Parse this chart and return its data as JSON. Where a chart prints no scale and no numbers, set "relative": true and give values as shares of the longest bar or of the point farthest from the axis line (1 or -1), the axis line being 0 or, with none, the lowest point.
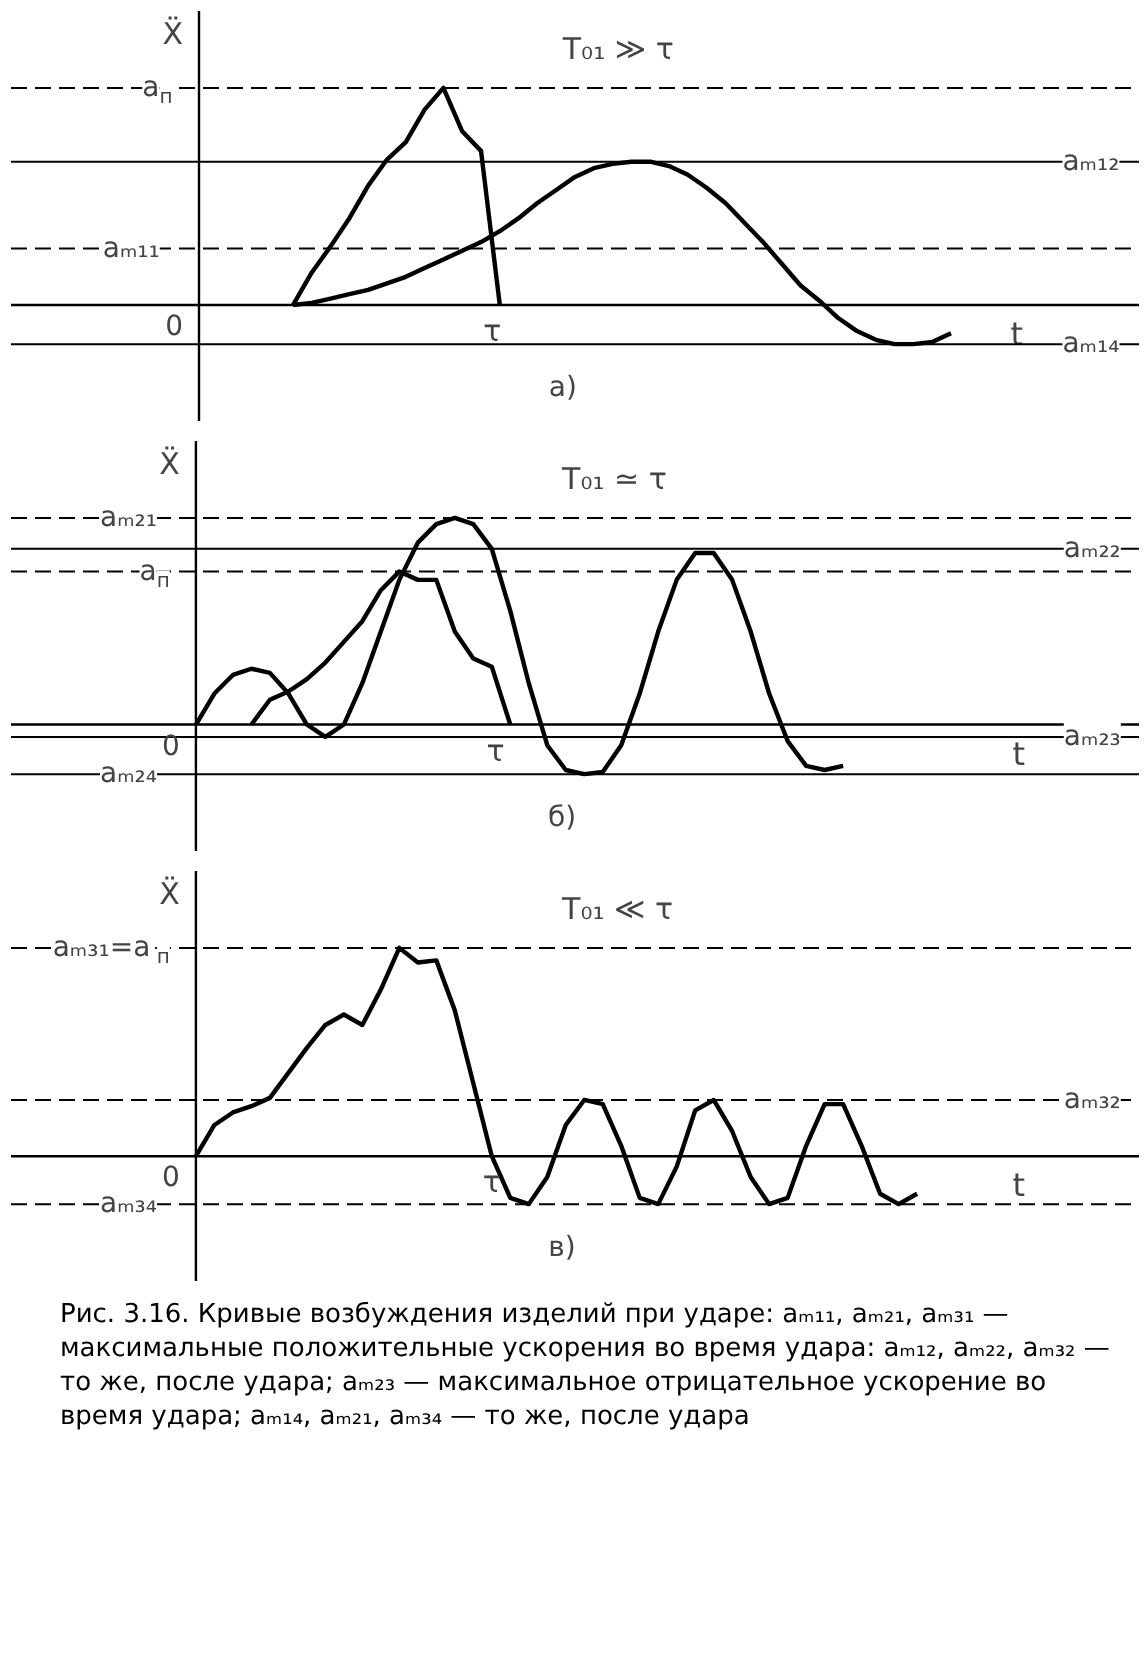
{
  "chart_data": [
    {
      "type": "line",
      "relative": true,
      "title": "T₀₁ ≫ τ",
      "subtitle": "а)",
      "xlabel": "t",
      "ylabel": "Ẍ",
      "categories": [
        null,
        null,
        null,
        null,
        null,
        null,
        null,
        null,
        null,
        null,
        null,
        null,
        null,
        null,
        null,
        null,
        null,
        null,
        null,
        null,
        null,
        null,
        null,
        null,
        null,
        null,
        null,
        null,
        null,
        null,
        null,
        null,
        null,
        null,
        null,
        null,
        null,
        null,
        null,
        null,
        null,
        null,
        null
      ],
      "series": [
        {
          "color": "#000000",
          "values": [
            null,
            null,
            null,
            null,
            null,
            0,
            0.15,
            0.27,
            0.4,
            0.55,
            0.67,
            0.75,
            0.9,
            1.0,
            0.8,
            0.71,
            0,
            null,
            null,
            null,
            null,
            null,
            null,
            null,
            null,
            null,
            null,
            null,
            null,
            null,
            null,
            null,
            null,
            null,
            null,
            null,
            null,
            null,
            null,
            null,
            null,
            null,
            null
          ]
        },
        {
          "color": "#000000",
          "values": [
            null,
            null,
            null,
            null,
            null,
            0,
            0.01,
            0.03,
            0.05,
            0.07,
            0.1,
            0.13,
            0.17,
            0.21,
            0.25,
            0.29,
            0.34,
            0.4,
            0.47,
            0.53,
            0.59,
            0.63,
            0.65,
            0.66,
            0.66,
            0.64,
            0.6,
            0.54,
            0.47,
            0.38,
            0.29,
            0.19,
            0.09,
            0.02,
            -0.06,
            -0.12,
            -0.16,
            -0.18,
            -0.18,
            -0.17,
            -0.13,
            null,
            null
          ]
        }
      ],
      "ref_lines": [
        {
          "axis": "y",
          "value": 1.0,
          "label": "a$_{п}$",
          "line_style": "dashed"
        },
        {
          "axis": "y",
          "value": 0.66,
          "label": "aₘ₁₂",
          "line_style": "solid"
        },
        {
          "axis": "y",
          "value": 0.26,
          "label": "aₘ₁₁",
          "line_style": "dashed"
        },
        {
          "axis": "y",
          "value": -0.18,
          "label": "aₘ₁₄",
          "line_style": "solid"
        }
      ],
      "annotations": [
        "0",
        "τ"
      ]
    },
    {
      "type": "line",
      "relative": true,
      "title": "T₀₁ ≃ τ",
      "subtitle": "б)",
      "xlabel": "t",
      "ylabel": "Ẍ",
      "categories": [
        null,
        null,
        null,
        null,
        null,
        null,
        null,
        null,
        null,
        null,
        null,
        null,
        null,
        null,
        null,
        null,
        null,
        null,
        null,
        null,
        null,
        null,
        null,
        null,
        null,
        null,
        null,
        null,
        null,
        null,
        null,
        null,
        null,
        null,
        null,
        null,
        null,
        null,
        null,
        null,
        null,
        null,
        null,
        null
      ],
      "series": [
        {
          "color": "#000000",
          "values": [
            0,
            0.15,
            0.24,
            0.27,
            0.25,
            0.15,
            0.0,
            -0.06,
            0.0,
            0.2,
            0.45,
            0.7,
            0.88,
            0.97,
            1.0,
            0.97,
            0.85,
            0.55,
            0.2,
            -0.1,
            -0.22,
            -0.24,
            -0.23,
            -0.1,
            0.15,
            0.45,
            0.7,
            0.83,
            0.83,
            0.7,
            0.45,
            0.15,
            -0.08,
            -0.2,
            -0.22,
            -0.2,
            null,
            null,
            null,
            null,
            null,
            null,
            null,
            null
          ]
        },
        {
          "color": "#000000",
          "values": [
            null,
            null,
            null,
            0,
            0.12,
            0.16,
            0.22,
            0.3,
            0.4,
            0.5,
            0.65,
            0.74,
            0.7,
            0.7,
            0.45,
            0.32,
            0.28,
            0,
            null,
            null,
            null,
            null,
            null,
            null,
            null,
            null,
            null,
            null,
            null,
            null,
            null,
            null,
            null,
            null,
            null,
            null,
            null,
            null,
            null,
            null,
            null,
            null,
            null,
            null
          ]
        }
      ],
      "ref_lines": [
        {
          "axis": "y",
          "value": 1.0,
          "label": "aₘ₂₁",
          "line_style": "dashed"
        },
        {
          "axis": "y",
          "value": 0.85,
          "label": "aₘ₂₂",
          "line_style": "solid"
        },
        {
          "axis": "y",
          "value": 0.74,
          "label": "a$_{п}$",
          "line_style": "dashed"
        },
        {
          "axis": "y",
          "value": -0.06,
          "label": "aₘ₂₃",
          "line_style": "solid"
        },
        {
          "axis": "y",
          "value": -0.24,
          "label": "aₘ₂₄",
          "line_style": "solid"
        }
      ],
      "annotations": [
        "0",
        "τ"
      ]
    },
    {
      "type": "line",
      "relative": true,
      "title": "T₀₁ ≪ τ",
      "subtitle": "в)",
      "xlabel": "t",
      "ylabel": "Ẍ",
      "categories": [
        null,
        null,
        null,
        null,
        null,
        null,
        null,
        null,
        null,
        null,
        null,
        null,
        null,
        null,
        null,
        null,
        null,
        null,
        null,
        null,
        null,
        null,
        null,
        null,
        null,
        null,
        null,
        null,
        null,
        null,
        null,
        null,
        null,
        null,
        null,
        null,
        null,
        null,
        null,
        null,
        null,
        null,
        null,
        null
      ],
      "series": [
        {
          "color": "#000000",
          "values": [
            0,
            0.15,
            0.21,
            0.24,
            0.28,
            0.4,
            0.52,
            0.63,
            0.68,
            0.63,
            0.8,
            1.0,
            0.93,
            0.94,
            0.7,
            0.35,
            0,
            -0.2,
            -0.23,
            -0.1,
            0.15,
            0.27,
            0.25,
            0.05,
            -0.2,
            -0.23,
            -0.05,
            0.22,
            0.27,
            0.12,
            -0.1,
            -0.23,
            -0.2,
            0.05,
            0.25,
            0.25,
            0.05,
            -0.18,
            -0.23,
            -0.18,
            null,
            null,
            null,
            null
          ]
        }
      ],
      "ref_lines": [
        {
          "axis": "y",
          "value": 1.0,
          "label": "aₘ₃₁=a$_{п}$",
          "line_style": "dashed"
        },
        {
          "axis": "y",
          "value": 0.27,
          "label": "aₘ₃₂",
          "line_style": "dashed"
        },
        {
          "axis": "y",
          "value": -0.23,
          "label": "aₘ₃₄",
          "line_style": "dashed"
        }
      ],
      "annotations": [
        "0",
        "τ",
        "Рис. 3.16. Кривые возбуждения изделий при ударе: aₘ₁₁, aₘ₂₁, aₘ₃₁ — максимальные положительные ускорения во время удара: aₘ₁₂, aₘ₂₂, aₘ₃₂ — то же, после удара; aₘ₂₃ — максимальное отрицательное ускорение во время удара; aₘ₁₄, aₘ₂₁, aₘ₃₄ — то же, после удара"
      ]
    }
  ]
}
